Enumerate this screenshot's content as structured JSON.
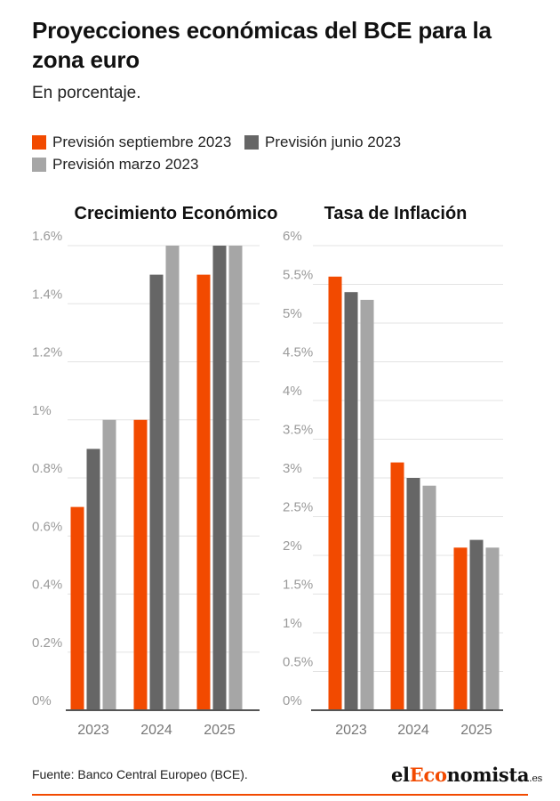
{
  "header": {
    "title": "Proyecciones económicas del BCE para la zona euro",
    "subtitle": "En porcentaje."
  },
  "legend": [
    {
      "label": "Previsión septiembre 2023",
      "color": "#f24a00"
    },
    {
      "label": "Previsión junio 2023",
      "color": "#666666"
    },
    {
      "label": "Previsión marzo 2023",
      "color": "#a6a6a6"
    }
  ],
  "footer": {
    "source": "Fuente: Banco Central Europeo (BCE).",
    "brand_prefix": "el",
    "brand_highlight": "Eco",
    "brand_rest": "nomista",
    "brand_tld": ".es"
  },
  "chart_data": [
    {
      "type": "bar",
      "title": "Crecimiento Económico",
      "categories": [
        "2023",
        "2024",
        "2025"
      ],
      "series": [
        {
          "name": "Previsión septiembre 2023",
          "values": [
            0.7,
            1.0,
            1.5
          ]
        },
        {
          "name": "Previsión junio 2023",
          "values": [
            0.9,
            1.5,
            1.6
          ]
        },
        {
          "name": "Previsión marzo 2023",
          "values": [
            1.0,
            1.6,
            1.6
          ]
        }
      ],
      "ylim": [
        0,
        1.6
      ],
      "yticks": [
        "0%",
        "0.2%",
        "0.4%",
        "0.6%",
        "0.8%",
        "1%",
        "1.2%",
        "1.4%",
        "1.6%"
      ],
      "grid": true
    },
    {
      "type": "bar",
      "title": "Tasa de Inflación",
      "categories": [
        "2023",
        "2024",
        "2025"
      ],
      "series": [
        {
          "name": "Previsión septiembre 2023",
          "values": [
            5.6,
            3.2,
            2.1
          ]
        },
        {
          "name": "Previsión junio 2023",
          "values": [
            5.4,
            3.0,
            2.2
          ]
        },
        {
          "name": "Previsión marzo 2023",
          "values": [
            5.3,
            2.9,
            2.1
          ]
        }
      ],
      "ylim": [
        0,
        6
      ],
      "yticks": [
        "0%",
        "0.5%",
        "1%",
        "1.5%",
        "2%",
        "2.5%",
        "3%",
        "3.5%",
        "4%",
        "4.5%",
        "5%",
        "5.5%",
        "6%"
      ],
      "grid": true
    }
  ]
}
